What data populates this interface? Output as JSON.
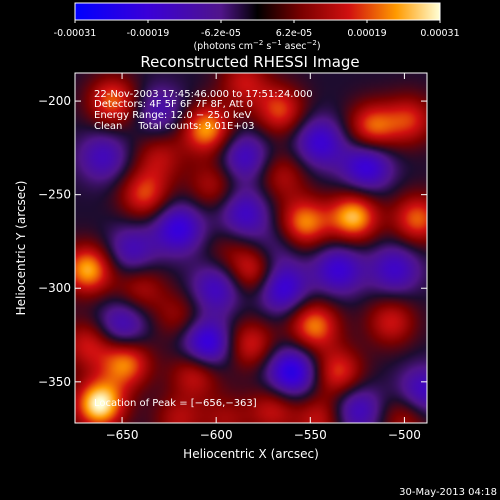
{
  "chart_data": {
    "type": "heatmap",
    "title": "Reconstructed RHESSI Image",
    "xlabel": "Heliocentric X (arcsec)",
    "ylabel": "Heliocentric Y (arcsec)",
    "xlim": [
      -675,
      -488
    ],
    "ylim": [
      -372,
      -185
    ],
    "xticks": [
      -650,
      -600,
      -550,
      -500
    ],
    "yticks": [
      -200,
      -250,
      -300,
      -350
    ],
    "xtick_labels": [
      "−650",
      "−600",
      "−550",
      "−500"
    ],
    "ytick_labels": [
      "−200",
      "−250",
      "−300",
      "−350"
    ],
    "colorbar": {
      "ticks": [
        "-0.00031",
        "-0.00019",
        "-6.2e-05",
        "6.2e-05",
        "0.00019",
        "0.00031"
      ],
      "unit_prefix": "(photons cm",
      "unit_sup1": "−2",
      "unit_mid": " s",
      "unit_sup2": "−1",
      "unit_mid2": " asec",
      "unit_sup3": "−2",
      "unit_suffix": ")",
      "range": [
        -0.00031,
        0.00031
      ]
    },
    "annotations": [
      "22-Nov-2003 17:45:46.000 to 17:51:24.000",
      "Detectors: 4F 5F 6F 7F 8F, Att 0",
      "Energy Range: 12.0 − 25.0 keV",
      "Clean     Total counts: 9.01E+03"
    ],
    "peak_label": "Location of Peak = [−656,−363]",
    "peak": [
      -656,
      -363
    ],
    "sources": [
      {
        "x": -662,
        "y": -362,
        "v": 0.00031
      },
      {
        "x": -668,
        "y": -290,
        "v": 0.00025
      },
      {
        "x": -668,
        "y": -330,
        "v": 0.00015
      },
      {
        "x": -648,
        "y": -340,
        "v": 0.00022
      },
      {
        "x": -655,
        "y": -200,
        "v": 0.0002
      },
      {
        "x": -638,
        "y": -250,
        "v": 0.00018
      },
      {
        "x": -640,
        "y": -300,
        "v": 0.00012
      },
      {
        "x": -605,
        "y": -215,
        "v": 0.00024
      },
      {
        "x": -602,
        "y": -245,
        "v": 0.00012
      },
      {
        "x": -585,
        "y": -190,
        "v": 0.00014
      },
      {
        "x": -566,
        "y": -205,
        "v": 0.00018
      },
      {
        "x": -565,
        "y": -240,
        "v": 0.00012
      },
      {
        "x": -553,
        "y": -265,
        "v": 0.00022
      },
      {
        "x": -517,
        "y": -214,
        "v": 0.0002
      },
      {
        "x": -527,
        "y": -262,
        "v": 0.00026
      },
      {
        "x": -497,
        "y": -210,
        "v": 0.00016
      },
      {
        "x": -493,
        "y": -263,
        "v": 0.0002
      },
      {
        "x": -507,
        "y": -318,
        "v": 0.00015
      },
      {
        "x": -580,
        "y": -290,
        "v": 0.00018
      },
      {
        "x": -548,
        "y": -320,
        "v": 0.00022
      },
      {
        "x": -535,
        "y": -345,
        "v": 0.00018
      },
      {
        "x": -582,
        "y": -330,
        "v": 0.00016
      },
      {
        "x": -570,
        "y": -365,
        "v": 0.00014
      },
      {
        "x": -545,
        "y": -370,
        "v": 0.00014
      },
      {
        "x": -620,
        "y": -315,
        "v": 0.0001
      },
      {
        "x": -611,
        "y": -345,
        "v": 0.00016
      },
      {
        "x": -620,
        "y": -370,
        "v": 0.00012
      },
      {
        "x": -595,
        "y": -370,
        "v": 0.0001
      },
      {
        "x": -500,
        "y": -370,
        "v": 0.00012
      },
      {
        "x": -630,
        "y": -230,
        "v": 0.00012
      },
      {
        "x": -595,
        "y": -280,
        "v": 6e-05
      },
      {
        "x": -620,
        "y": -268,
        "v": -0.0002
      },
      {
        "x": -585,
        "y": -260,
        "v": -0.00016
      },
      {
        "x": -545,
        "y": -222,
        "v": -0.00018
      },
      {
        "x": -585,
        "y": -230,
        "v": -0.00016
      },
      {
        "x": -520,
        "y": -235,
        "v": -0.0002
      },
      {
        "x": -535,
        "y": -290,
        "v": -0.00018
      },
      {
        "x": -505,
        "y": -290,
        "v": -0.00016
      },
      {
        "x": -565,
        "y": -300,
        "v": -0.0002
      },
      {
        "x": -600,
        "y": -300,
        "v": -0.00016
      },
      {
        "x": -605,
        "y": -330,
        "v": -0.00024
      },
      {
        "x": -560,
        "y": -345,
        "v": -0.00024
      },
      {
        "x": -525,
        "y": -365,
        "v": -0.00016
      },
      {
        "x": -490,
        "y": -355,
        "v": -0.00016
      },
      {
        "x": -645,
        "y": -280,
        "v": -0.00014
      },
      {
        "x": -650,
        "y": -320,
        "v": -0.00016
      },
      {
        "x": -660,
        "y": -230,
        "v": -0.00014
      },
      {
        "x": -570,
        "y": -280,
        "v": -8e-05
      },
      {
        "x": -630,
        "y": -205,
        "v": -0.00012
      }
    ]
  },
  "footer_date": "30-May-2013 04:18"
}
